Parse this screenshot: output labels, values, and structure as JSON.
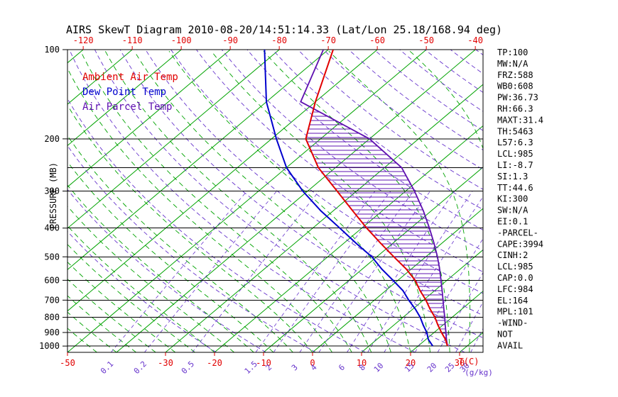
{
  "title": "AIRS SkewT Diagram 2010-08-20/14:51:14.33 (Lat/Lon 25.18/168.94 deg)",
  "colors": {
    "isotherm_green": "#00a300",
    "adiabat_violet": "#6633cc",
    "parcel_violet": "#5e10b0",
    "ambient_red": "#e10000",
    "dewpoint_blue": "#0000cd",
    "axis_black": "#000000"
  },
  "legend": {
    "items": [
      {
        "label": "Ambient Air Temp",
        "color": "#e10000"
      },
      {
        "label": "Dew Point Temp",
        "color": "#0000cd"
      },
      {
        "label": "Air Parcel Temp",
        "color": "#5e10b0"
      }
    ]
  },
  "axes": {
    "pressure_label": "PRESSURE (MB)",
    "pressure_ticks": [
      100,
      200,
      300,
      400,
      500,
      600,
      700,
      800,
      900,
      1000
    ],
    "pressure_grid_lines": [
      100,
      200,
      250,
      300,
      400,
      500,
      600,
      700,
      800,
      900,
      1000
    ],
    "top_temp_labels": [
      -120,
      -110,
      -100,
      -90,
      -80,
      -70,
      -60,
      -50,
      -40
    ],
    "bottom_temp_labels": [
      -50,
      -30,
      -20,
      -10,
      0,
      10,
      20,
      30
    ],
    "temp_unit_label": "T(C)",
    "mixing_ratio_labels": [
      0.1,
      0.2,
      0.5,
      1.5,
      2,
      3,
      4,
      6,
      8,
      10,
      15,
      20,
      25,
      30
    ],
    "mixing_ratio_unit_label": "(g/kg)"
  },
  "panel": {
    "lines": [
      "TP:100",
      "MW:N/A",
      "FRZ:588",
      "WB0:608",
      "PW:36.73",
      "RH:66.3",
      "MAXT:31.4",
      "TH:5463",
      "L57:6.3",
      "LCL:985",
      "LI:-8.7",
      "SI:1.3",
      "TT:44.6",
      "KI:300",
      "SW:N/A",
      "EI:0.1",
      "-PARCEL-",
      "CAPE:3994",
      "CINH:2",
      "LCL:985",
      "CAP:0.0",
      "LFC:984",
      "EL:164",
      "MPL:101",
      "-WIND-",
      "NOT",
      "AVAIL"
    ]
  },
  "chart_data": {
    "type": "line",
    "title": "AIRS SkewT Diagram 2010-08-20/14:51:14.33 (Lat/Lon 25.18/168.94 deg)",
    "x_axis": {
      "label": "T(C)",
      "top_label_range": [
        -120,
        -40
      ],
      "bottom_label_range": [
        -50,
        30
      ],
      "skewed": true
    },
    "y_axis": {
      "label": "PRESSURE (MB)",
      "scale": "log",
      "range_mb": [
        100,
        1050
      ]
    },
    "grid": {
      "isotherms_c": [
        -120,
        -110,
        -100,
        -90,
        -80,
        -70,
        -60,
        -50,
        -40,
        -30,
        -20,
        -10,
        0,
        10,
        20,
        30
      ],
      "dry_adiabats_theta_k": [
        250,
        260,
        270,
        280,
        290,
        300,
        310,
        320,
        330,
        340,
        350,
        360,
        370,
        380,
        390,
        400,
        410,
        420,
        430,
        440,
        450
      ],
      "moist_adiabat_surface_temps_c": [
        -44,
        -40,
        -36,
        -32,
        -28,
        -24,
        -20,
        -16,
        -12,
        -8,
        -4,
        0,
        4,
        8,
        12,
        16,
        20,
        24,
        28,
        32,
        36
      ],
      "mixing_ratio_g_per_kg": [
        0.1,
        0.2,
        0.5,
        1.5,
        2,
        3,
        4,
        6,
        8,
        10,
        15,
        20,
        25,
        30
      ]
    },
    "sounding": {
      "pressure_mb": [
        1000,
        950,
        900,
        850,
        800,
        750,
        700,
        650,
        600,
        550,
        500,
        450,
        400,
        350,
        300,
        250,
        200,
        150,
        100
      ],
      "series": [
        {
          "name": "Ambient Air Temp",
          "color": "#e10000",
          "temps_c": [
            26.0,
            24.0,
            21.5,
            19.0,
            16.5,
            13.5,
            10.5,
            7.0,
            3.5,
            -1.0,
            -6.5,
            -12.5,
            -19.0,
            -26.0,
            -34.0,
            -43.5,
            -53.0,
            -60.0,
            -69.0
          ]
        },
        {
          "name": "Dew Point Temp",
          "color": "#0000cd",
          "temps_c": [
            23.0,
            20.5,
            18.5,
            16.0,
            13.5,
            10.5,
            7.0,
            3.5,
            -1.0,
            -6.0,
            -11.0,
            -17.5,
            -24.5,
            -32.5,
            -41.0,
            -50.0,
            -59.0,
            -70.0,
            -83.0
          ]
        },
        {
          "name": "Air Parcel Temp",
          "color": "#5e10b0",
          "temps_c": [
            26.0,
            24.2,
            22.4,
            20.5,
            18.5,
            16.3,
            14.0,
            11.5,
            8.8,
            5.8,
            2.4,
            -1.6,
            -6.2,
            -11.6,
            -18.2,
            -26.5,
            -40.0,
            -63.0,
            -71.0
          ]
        }
      ]
    },
    "cape_hatch": {
      "between": [
        "Air Parcel Temp",
        "Ambient Air Temp"
      ],
      "style": "horizontal-hatch",
      "color": "#5e10b0"
    }
  }
}
